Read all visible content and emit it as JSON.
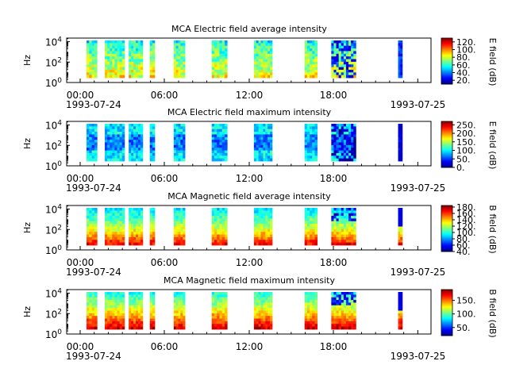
{
  "chart_data": [
    {
      "type": "heatmap",
      "title": "MCA  Electric field average intensity",
      "ylabel": "Hz",
      "y_scale": "log",
      "y_ticks": [
        {
          "base": "10",
          "exp": "0",
          "value": 1
        },
        {
          "base": "10",
          "exp": "2",
          "value": 100
        },
        {
          "base": "10",
          "exp": "4",
          "value": 10000
        }
      ],
      "x_ticks": [
        "00:00",
        "06:00",
        "12:00",
        "18:00"
      ],
      "x_date_start": "1993-07-24",
      "x_date_end": "1993-07-25",
      "colorbar_label": "E field (dB)",
      "colorbar_range": [
        10,
        130
      ],
      "colorbar_ticks": [
        "120.",
        "100.",
        "80.",
        "60.",
        "40.",
        "20."
      ],
      "colorbar_tick_values": [
        120,
        100,
        80,
        60,
        40,
        20
      ]
    },
    {
      "type": "heatmap",
      "title": "MCA  Electric field maximum intensity",
      "ylabel": "Hz",
      "y_scale": "log",
      "y_ticks": [
        {
          "base": "10",
          "exp": "0",
          "value": 1
        },
        {
          "base": "10",
          "exp": "2",
          "value": 100
        },
        {
          "base": "10",
          "exp": "4",
          "value": 10000
        }
      ],
      "x_ticks": [
        "00:00",
        "06:00",
        "12:00",
        "18:00"
      ],
      "x_date_start": "1993-07-24",
      "x_date_end": "1993-07-25",
      "colorbar_label": "E field (dB)",
      "colorbar_range": [
        0,
        270
      ],
      "colorbar_ticks": [
        "250.",
        "200.",
        "150.",
        "100.",
        "50.",
        "0."
      ],
      "colorbar_tick_values": [
        250,
        200,
        150,
        100,
        50,
        0
      ]
    },
    {
      "type": "heatmap",
      "title": "MCA  Magnetic field average intensity",
      "ylabel": "Hz",
      "y_scale": "log",
      "y_ticks": [
        {
          "base": "10",
          "exp": "0",
          "value": 1
        },
        {
          "base": "10",
          "exp": "2",
          "value": 100
        },
        {
          "base": "10",
          "exp": "4",
          "value": 10000
        }
      ],
      "x_ticks": [
        "00:00",
        "06:00",
        "12:00",
        "18:00"
      ],
      "x_date_start": "1993-07-24",
      "x_date_end": "1993-07-25",
      "colorbar_label": "B field (dB)",
      "colorbar_range": [
        40,
        185
      ],
      "colorbar_ticks": [
        "180.",
        "160.",
        "140.",
        "120.",
        "100.",
        "80.",
        "60.",
        "40."
      ],
      "colorbar_tick_values": [
        180,
        160,
        140,
        120,
        100,
        80,
        60,
        40
      ]
    },
    {
      "type": "heatmap",
      "title": "MCA  Magnetic field maximum intensity",
      "ylabel": "Hz",
      "y_scale": "log",
      "y_ticks": [
        {
          "base": "10",
          "exp": "0",
          "value": 1
        },
        {
          "base": "10",
          "exp": "2",
          "value": 100
        },
        {
          "base": "10",
          "exp": "4",
          "value": 10000
        }
      ],
      "x_ticks": [
        "00:00",
        "06:00",
        "12:00",
        "18:00"
      ],
      "x_date_start": "1993-07-24",
      "x_date_end": "1993-07-25",
      "colorbar_label": "B field (dB)",
      "colorbar_range": [
        20,
        190
      ],
      "colorbar_ticks": [
        "150.",
        "100.",
        "50."
      ],
      "colorbar_tick_values": [
        150,
        100,
        50
      ]
    }
  ]
}
